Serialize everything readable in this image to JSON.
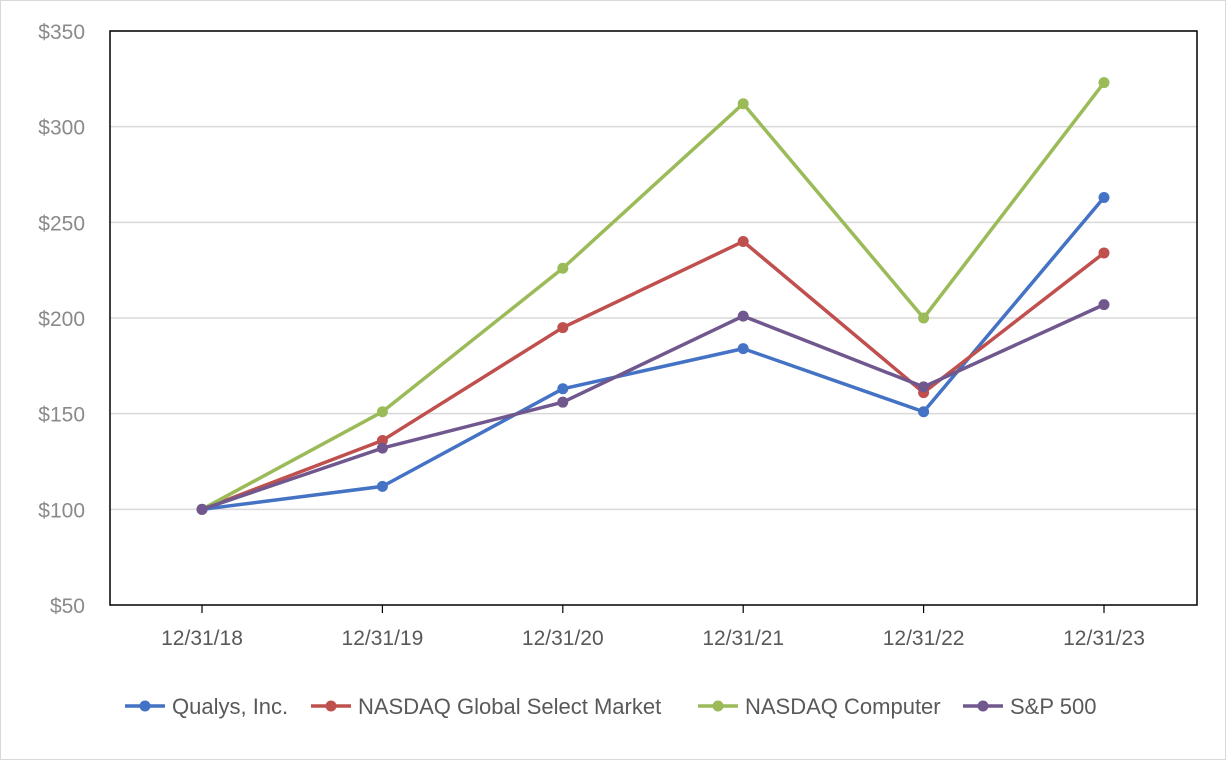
{
  "chart_data": {
    "type": "line",
    "title": "",
    "xlabel": "",
    "ylabel": "",
    "categories": [
      "12/31/18",
      "12/31/19",
      "12/31/20",
      "12/31/21",
      "12/31/22",
      "12/31/23"
    ],
    "ylim": [
      50,
      350
    ],
    "yticks": [
      50,
      100,
      150,
      200,
      250,
      300,
      350
    ],
    "ytick_labels": [
      "$50",
      "$100",
      "$150",
      "$200",
      "$250",
      "$300",
      "$350"
    ],
    "grid": true,
    "legend_position": "bottom",
    "series": [
      {
        "name": "Qualys, Inc.",
        "color": "#4472C4",
        "values": [
          100,
          112,
          163,
          184,
          151,
          263
        ]
      },
      {
        "name": "NASDAQ Global Select Market",
        "color": "#C0504D",
        "values": [
          100,
          136,
          195,
          240,
          161,
          234
        ]
      },
      {
        "name": "NASDAQ Computer",
        "color": "#9BBB59",
        "values": [
          100,
          151,
          226,
          312,
          200,
          323
        ]
      },
      {
        "name": "S&P 500",
        "color": "#70588F",
        "values": [
          100,
          132,
          156,
          201,
          164,
          207
        ]
      }
    ]
  }
}
